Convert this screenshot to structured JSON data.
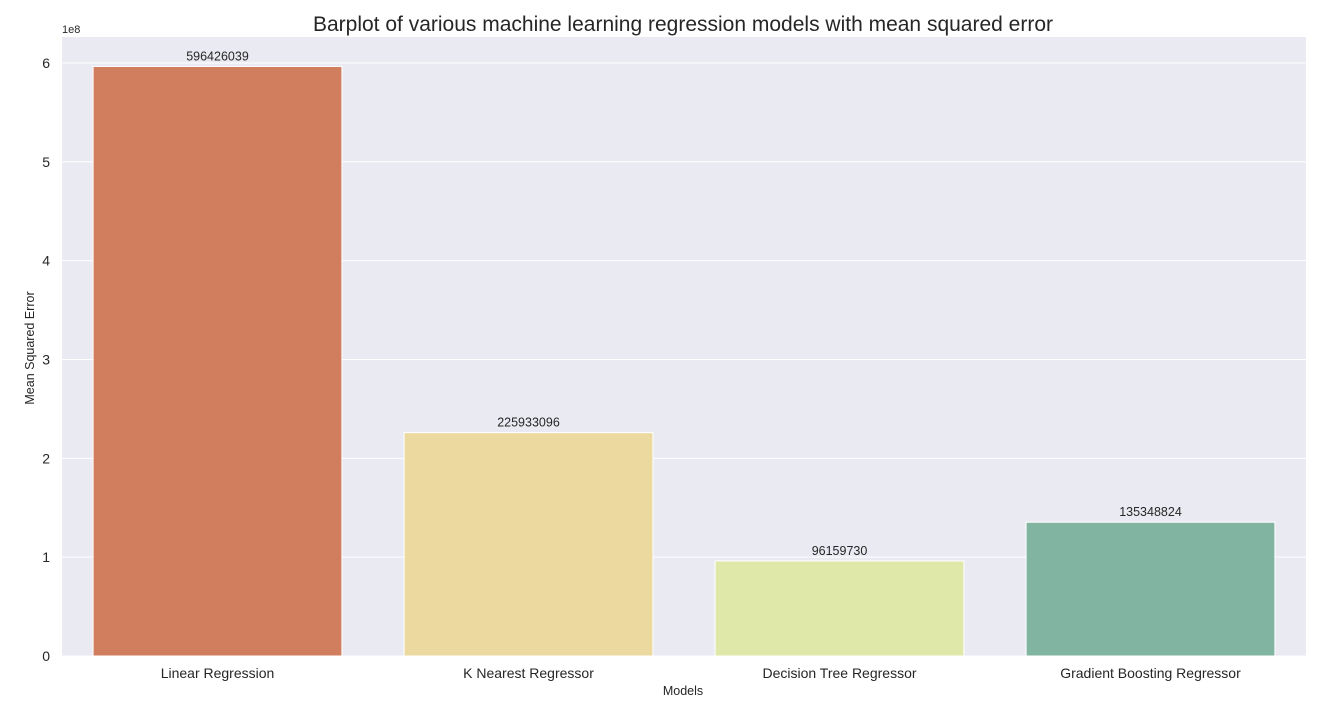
{
  "chart_data": {
    "type": "bar",
    "title": "Barplot of various machine learning regression models with mean squared error",
    "xlabel": "Models",
    "ylabel": "Mean Squared Error",
    "y_offset_text": "1e8",
    "categories": [
      "Linear Regression",
      "K Nearest Regressor",
      "Decision Tree Regressor",
      "Gradient Boosting Regressor"
    ],
    "values": [
      596426039,
      225933096,
      96159730,
      135348824
    ],
    "data_labels": [
      "596426039",
      "225933096",
      "96159730",
      "135348824"
    ],
    "ylim": [
      0,
      626247340.95
    ],
    "y_ticks": [
      0,
      100000000,
      200000000,
      300000000,
      400000000,
      500000000,
      600000000
    ],
    "y_tick_labels": [
      "0",
      "1",
      "2",
      "3",
      "4",
      "5",
      "6"
    ],
    "colors": [
      "#d17e5e",
      "#ebd9a0",
      "#e0e8a9",
      "#81b5a2"
    ],
    "plot_background": "#eaeaf2",
    "grid": true,
    "legend": "none"
  }
}
